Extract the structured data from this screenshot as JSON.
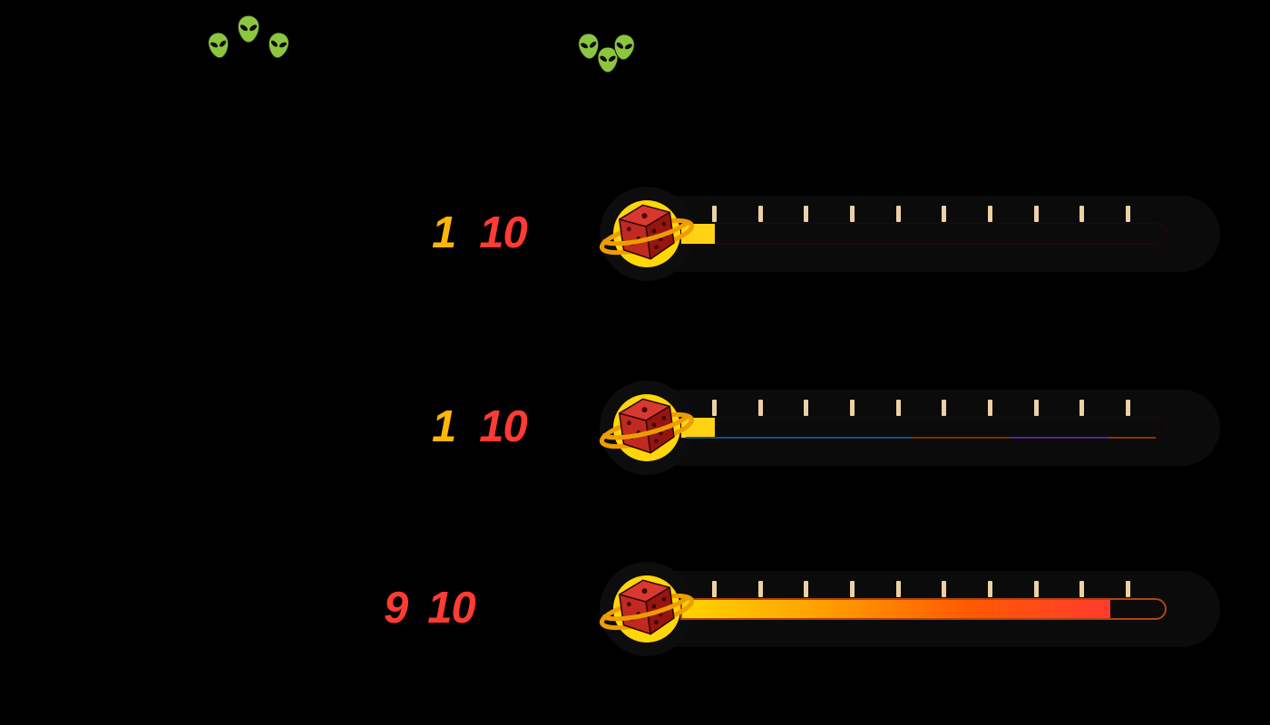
{
  "page": {
    "background": "#000000"
  },
  "alien_reactions": {
    "icon": "alien-head-icon",
    "group_1_count": 3,
    "group_2_count": 3,
    "color": "#8CC63E"
  },
  "ratings": {
    "rows": [
      {
        "score": "1",
        "denominator": "10",
        "score_color": "#FFB607",
        "denominator_color": "#FF3B33",
        "fill": 1,
        "fill_colors": [
          "#FFD215"
        ]
      },
      {
        "score": "1",
        "denominator": "10",
        "score_color": "#FFB607",
        "denominator_color": "#FF3B33",
        "fill": 1,
        "fill_colors": [
          "#FFD215"
        ],
        "underline_segments": [
          "#1F4E79",
          "#7A2E10",
          "#4F2B86",
          "#8A3012"
        ]
      },
      {
        "score": "9",
        "denominator": "10",
        "score_color": "#FF3B33",
        "denominator_color": "#FF3B33",
        "fill": 9,
        "fill_colors": [
          "#FFD400",
          "#FF9E00",
          "#FF5A00",
          "#FF3B2E"
        ]
      }
    ]
  },
  "meter": {
    "tick_count": 10,
    "tick_color": "#EDD0A5",
    "tube_color": "#0B0B0B",
    "empty_outline_color": "#B5430F"
  },
  "logo": {
    "name": "dice-planet-logo",
    "circle_color": "#FFD60A",
    "ring_color": "#EE9D00",
    "die_top_color": "#D93830",
    "die_left_color": "#C02A20",
    "die_right_color": "#96160F"
  }
}
